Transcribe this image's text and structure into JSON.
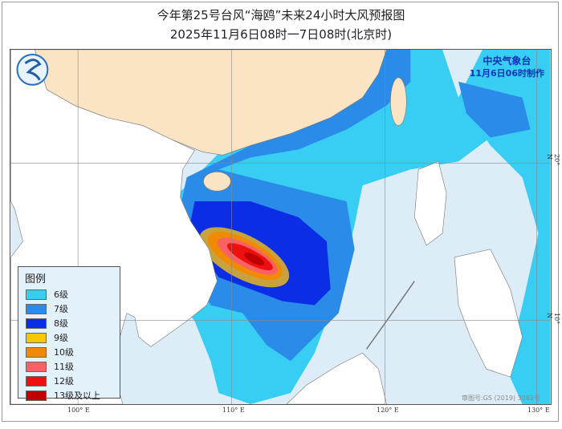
{
  "title": "今年第25号台风“海鸥”未来24小时大风预报图",
  "subtitle": "2025年11月6日08时一7日08时(北京时)",
  "agency": {
    "name": "中央气象台",
    "issued": "11月6日06时制作"
  },
  "legend": {
    "title": "图例",
    "items": [
      {
        "label": "6级",
        "color": "#38cdf2"
      },
      {
        "label": "7级",
        "color": "#2b8be8"
      },
      {
        "label": "8级",
        "color": "#0b2de6"
      },
      {
        "label": "9级",
        "color": "#f7c800"
      },
      {
        "label": "10级",
        "color": "#f08a00"
      },
      {
        "label": "11级",
        "color": "#f86262"
      },
      {
        "label": "12级",
        "color": "#ee1010"
      },
      {
        "label": "13级及以上",
        "color": "#c00000"
      }
    ]
  },
  "axes": {
    "lon": [
      "100° E",
      "110° E",
      "120° E",
      "130° E"
    ],
    "lat": [
      "20° N",
      "10° N"
    ]
  },
  "watermark": "审图号:GS (2019) 3082号",
  "colors": {
    "sea": "#dcedf8",
    "china_land": "#fbe4c4",
    "other_land": "#ffffff"
  },
  "logo": "cma-logo"
}
